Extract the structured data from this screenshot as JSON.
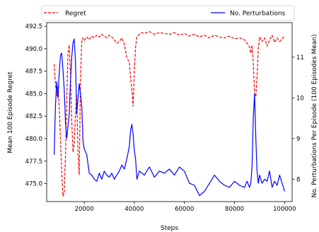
{
  "chart_data": {
    "type": "line",
    "xlabel": "Steps",
    "ylabel_left": "Mean 100 Episode Regret",
    "ylabel_right": "No. Perturbations Per Episode (100 Episodes Mean)",
    "xlim": [
      5000,
      103000
    ],
    "ylim_left": [
      473.0,
      492.9
    ],
    "ylim_right": [
      7.45,
      11.85
    ],
    "xticks": [
      20000,
      40000,
      60000,
      80000,
      100000
    ],
    "xtick_labels": [
      "20000",
      "40000",
      "60000",
      "80000",
      "100000"
    ],
    "yticks_left": [
      475.0,
      477.5,
      480.0,
      482.5,
      485.0,
      487.5,
      490.0,
      492.5
    ],
    "ytick_labels_left": [
      "475.0",
      "477.5",
      "480.0",
      "482.5",
      "485.0",
      "487.5",
      "490.0",
      "492.5"
    ],
    "yticks_right": [
      8,
      9,
      10,
      11
    ],
    "ytick_labels_right": [
      "8",
      "9",
      "10",
      "11"
    ],
    "grid": false,
    "legend": {
      "placement": "top",
      "entries": [
        {
          "label": "Regret",
          "color": "#ff0000",
          "dash": "dashed"
        },
        {
          "label": "No. Perturbations",
          "color": "#0000ff",
          "dash": "solid"
        }
      ]
    },
    "series": [
      {
        "name": "Regret",
        "axis": "left",
        "color": "#ff0000",
        "style": "dashed",
        "x": [
          8000,
          8500,
          9000,
          9500,
          10000,
          10500,
          11000,
          11500,
          12000,
          12500,
          13000,
          13500,
          14000,
          14500,
          15000,
          15500,
          16000,
          16500,
          17000,
          17500,
          18000,
          18500,
          19000,
          19500,
          20000,
          21000,
          22000,
          23000,
          24000,
          25000,
          26000,
          27000,
          28000,
          29000,
          30000,
          31000,
          32000,
          33000,
          34000,
          35000,
          36000,
          37000,
          38000,
          38500,
          39000,
          39500,
          40000,
          40500,
          41000,
          42000,
          43000,
          44000,
          46000,
          48000,
          50000,
          52000,
          54000,
          56000,
          58000,
          60000,
          62000,
          64000,
          66000,
          68000,
          70000,
          72000,
          74000,
          76000,
          78000,
          80000,
          82000,
          84000,
          85000,
          86000,
          86500,
          87000,
          87500,
          88000,
          88500,
          89000,
          89500,
          90000,
          91000,
          92000,
          93000,
          94000,
          95000,
          96000,
          97000,
          98000,
          99000,
          100000
        ],
        "y": [
          488.3,
          486.0,
          484.8,
          485.7,
          483.5,
          480.0,
          476.5,
          473.6,
          474.0,
          478.2,
          484.0,
          489.5,
          490.4,
          487.2,
          482.0,
          478.5,
          479.4,
          482.8,
          484.8,
          478.3,
          476.0,
          486.5,
          490.8,
          491.2,
          490.9,
          491.3,
          491.0,
          491.4,
          491.2,
          491.5,
          491.3,
          491.6,
          491.4,
          491.2,
          491.5,
          491.3,
          491.0,
          490.6,
          490.8,
          491.2,
          490.5,
          489.0,
          488.5,
          486.8,
          485.5,
          483.6,
          487.5,
          490.2,
          491.3,
          491.6,
          491.8,
          491.7,
          491.9,
          491.6,
          491.8,
          491.7,
          491.6,
          491.8,
          491.5,
          491.7,
          491.4,
          491.6,
          491.3,
          491.5,
          491.2,
          491.5,
          491.3,
          491.2,
          491.4,
          491.1,
          491.2,
          491.0,
          490.6,
          490.2,
          489.5,
          490.4,
          488.5,
          485.0,
          484.7,
          486.8,
          490.0,
          491.3,
          490.8,
          491.2,
          490.3,
          491.0,
          491.5,
          490.7,
          491.2,
          490.8,
          491.1,
          491.5
        ]
      },
      {
        "name": "No. Perturbations",
        "axis": "right",
        "color": "#0000ff",
        "style": "solid",
        "x": [
          8000,
          8500,
          9000,
          9500,
          10000,
          10500,
          11000,
          11500,
          12000,
          12500,
          13000,
          13500,
          14000,
          14500,
          15000,
          15500,
          16000,
          16500,
          17000,
          17500,
          18000,
          18500,
          19000,
          19500,
          20000,
          21000,
          22000,
          23000,
          24000,
          25000,
          26000,
          27000,
          28000,
          29000,
          30000,
          31000,
          32000,
          33000,
          34000,
          35000,
          36000,
          37000,
          38000,
          38500,
          39000,
          39500,
          40000,
          40500,
          41000,
          42000,
          44000,
          46000,
          48000,
          50000,
          52000,
          54000,
          56000,
          58000,
          60000,
          62000,
          64000,
          66000,
          68000,
          70000,
          72000,
          74000,
          76000,
          78000,
          80000,
          82000,
          84000,
          85000,
          86000,
          86500,
          87000,
          87500,
          88000,
          88500,
          89000,
          89500,
          90000,
          91000,
          92000,
          93000,
          94000,
          95000,
          96000,
          97000,
          98000,
          99000,
          100000
        ],
        "y": [
          8.6,
          9.8,
          10.4,
          10.0,
          10.6,
          11.05,
          11.1,
          10.7,
          10.2,
          9.4,
          9.0,
          9.3,
          9.6,
          10.4,
          11.0,
          11.35,
          11.45,
          10.9,
          9.6,
          10.0,
          10.35,
          10.1,
          9.8,
          8.95,
          8.75,
          8.6,
          8.15,
          8.1,
          8.0,
          7.95,
          8.15,
          8.0,
          8.2,
          8.1,
          8.05,
          8.15,
          8.0,
          8.1,
          8.2,
          8.35,
          8.25,
          8.5,
          8.8,
          9.2,
          9.35,
          9.1,
          8.7,
          8.5,
          8.0,
          8.2,
          8.1,
          8.3,
          8.05,
          8.2,
          8.15,
          8.25,
          8.1,
          8.3,
          8.2,
          7.9,
          7.85,
          7.6,
          7.7,
          7.9,
          8.1,
          7.95,
          7.85,
          7.8,
          7.95,
          7.85,
          7.8,
          7.95,
          7.8,
          7.9,
          8.3,
          9.5,
          10.1,
          9.0,
          8.2,
          7.9,
          8.1,
          7.9,
          8.0,
          7.95,
          8.2,
          7.8,
          7.95,
          7.85,
          8.1,
          7.9,
          7.7
        ]
      }
    ]
  }
}
